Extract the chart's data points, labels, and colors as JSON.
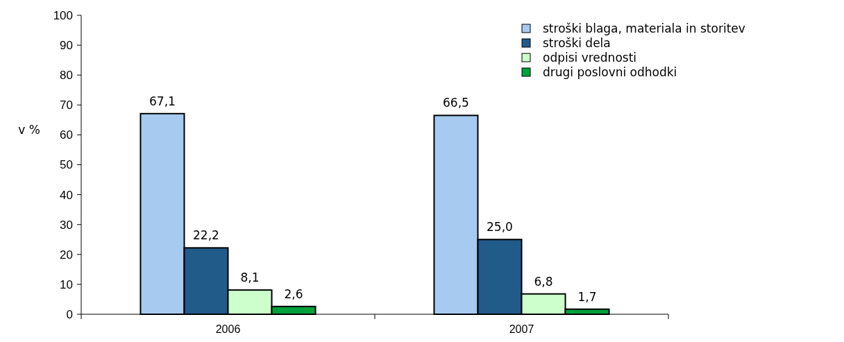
{
  "chart_data": {
    "type": "bar",
    "ylabel": "v %",
    "categories": [
      "2006",
      "2007"
    ],
    "series": [
      {
        "name": "stroški blaga, materiala in storitev",
        "color": "#a6caf0",
        "values": [
          67.1,
          66.5
        ],
        "value_labels": [
          "67,1",
          "66,5"
        ]
      },
      {
        "name": "stroški dela",
        "color": "#215b8a",
        "values": [
          22.2,
          25.0
        ],
        "value_labels": [
          "22,2",
          "25,0"
        ]
      },
      {
        "name": "odpisi vrednosti",
        "color": "#ccffcc",
        "values": [
          8.1,
          6.8
        ],
        "value_labels": [
          "8,1",
          "6,8"
        ]
      },
      {
        "name": "drugi poslovni odhodki",
        "color": "#00a03c",
        "values": [
          2.6,
          1.7
        ],
        "value_labels": [
          "2,6",
          "1,7"
        ]
      }
    ],
    "ylim": [
      0,
      100
    ],
    "yticks": [
      0,
      10,
      20,
      30,
      40,
      50,
      60,
      70,
      80,
      90,
      100
    ],
    "grid": false,
    "legend": "top right"
  }
}
